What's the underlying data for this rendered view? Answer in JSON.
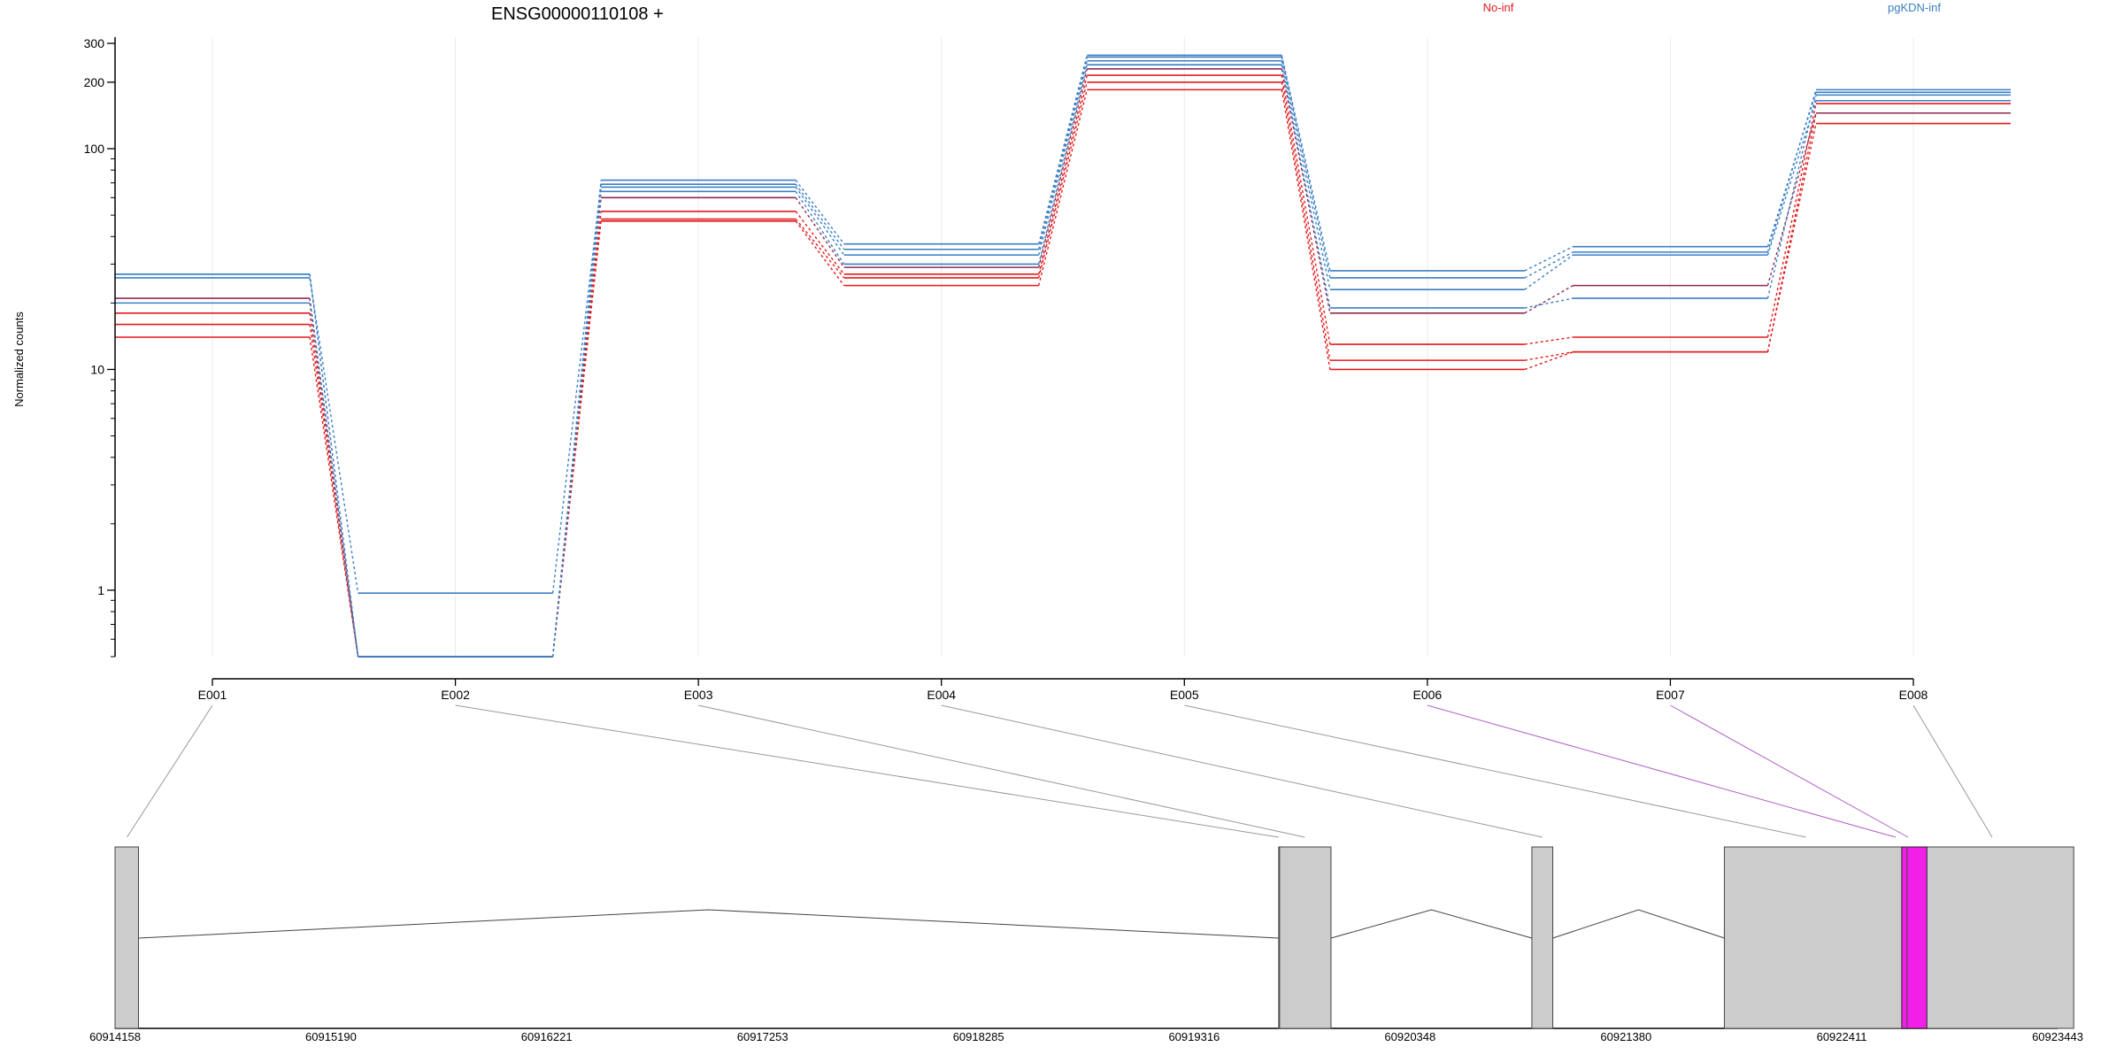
{
  "title": "ENSG00000110108 +",
  "chart_data": {
    "type": "line",
    "title": "ENSG00000110108 +",
    "ylabel": "Normalized counts",
    "yscale": "log",
    "ylim": [
      0.5,
      320
    ],
    "yticks": [
      1,
      10,
      100,
      200,
      300
    ],
    "ytick_labels": [
      "1",
      "10",
      "100",
      "200",
      "300"
    ],
    "categories": [
      "E001",
      "E002",
      "E003",
      "E004",
      "E005",
      "E006",
      "E007",
      "E008"
    ],
    "legend": [
      {
        "name": "No-inf",
        "color": "#E31A1C"
      },
      {
        "name": "pgKDN-inf",
        "color": "#3B7FC4"
      }
    ],
    "series": [
      {
        "group": "No-inf",
        "color": "#E31A1C",
        "values": [
          14,
          0.5,
          47,
          24,
          185,
          10,
          12,
          130
        ]
      },
      {
        "group": "No-inf",
        "color": "#E31A1C",
        "values": [
          16,
          0.5,
          48,
          26,
          200,
          11,
          12,
          145
        ]
      },
      {
        "group": "No-inf",
        "color": "#E31A1C",
        "values": [
          18,
          0.5,
          52,
          27,
          215,
          13,
          14,
          160
        ]
      },
      {
        "group": "No-inf",
        "color": "#8E2A52",
        "values": [
          21,
          0.5,
          60,
          29,
          230,
          18,
          24,
          145
        ]
      },
      {
        "group": "pgKDN-inf",
        "color": "#3B7FC4",
        "values": [
          20,
          0.5,
          64,
          30,
          240,
          19,
          21,
          175
        ]
      },
      {
        "group": "pgKDN-inf",
        "color": "#3B7FC4",
        "values": [
          27,
          0.5,
          67,
          33,
          250,
          23,
          33,
          165
        ]
      },
      {
        "group": "pgKDN-inf",
        "color": "#3B7FC4",
        "values": [
          26,
          0.97,
          69,
          35,
          260,
          26,
          34,
          185
        ]
      },
      {
        "group": "pgKDN-inf",
        "color": "#3B7FC4",
        "values": [
          27,
          0.5,
          72,
          37,
          265,
          28,
          36,
          180
        ]
      }
    ],
    "gene_model": {
      "coordinates": [
        "60914158",
        "60915190",
        "60916221",
        "60917253",
        "60918285",
        "60919316",
        "60920348",
        "60921380",
        "60922411",
        "60923443"
      ],
      "exons": [
        {
          "start": 60914158,
          "end": 60914270
        },
        {
          "start": 60919720,
          "end": 60919970
        },
        {
          "start": 60920930,
          "end": 60921030
        },
        {
          "start": 60921850,
          "end": 60923520
        }
      ],
      "highlight": {
        "start": 60922698,
        "end": 60922818,
        "color": "#F21FE8"
      },
      "exon_bins": [
        {
          "id": "E001",
          "pos": 60914215,
          "color": "#999999"
        },
        {
          "id": "E002",
          "pos": 60919720,
          "color": "#999999"
        },
        {
          "id": "E003",
          "pos": 60919845,
          "color": "#999999"
        },
        {
          "id": "E004",
          "pos": 60920980,
          "color": "#999999"
        },
        {
          "id": "E005",
          "pos": 60922240,
          "color": "#999999"
        },
        {
          "id": "E006",
          "pos": 60922668,
          "color": "#B05FC4"
        },
        {
          "id": "E007",
          "pos": 60922728,
          "color": "#B05FC4"
        },
        {
          "id": "E008",
          "pos": 60923130,
          "color": "#999999"
        }
      ]
    }
  }
}
